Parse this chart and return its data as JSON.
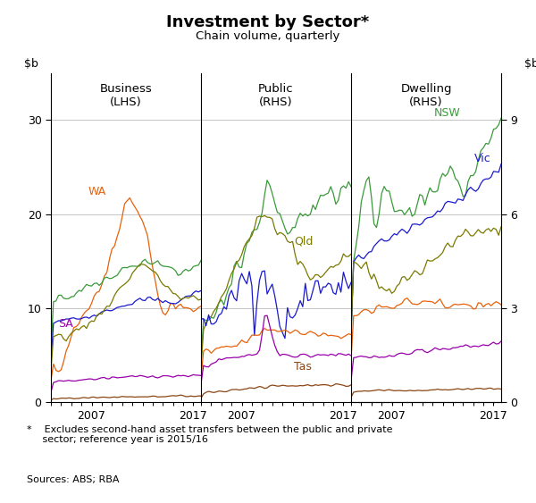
{
  "title": "Investment by Sector*",
  "subtitle": "Chain volume, quarterly",
  "footnote": "*    Excludes second-hand asset transfers between the public and private\n     sector; reference year is 2015/16",
  "sources": "Sources: ABS; RBA",
  "colors": {
    "WA": "#E8610A",
    "NSW": "#3A9A3A",
    "Vic": "#1A1ACC",
    "Qld": "#7A7A00",
    "SA": "#9900AA",
    "Tas": "#8B4513"
  },
  "lhs_ylim": [
    0,
    35
  ],
  "lhs_yticks": [
    0,
    10,
    20,
    30
  ],
  "rhs_ylim": [
    0,
    10.5
  ],
  "rhs_yticks": [
    0,
    3,
    6,
    9
  ],
  "xlim": [
    2003.0,
    2017.75
  ],
  "xticks": [
    2007,
    2017
  ],
  "background": "#FFFFFF",
  "grid_color": "#BBBBBB"
}
